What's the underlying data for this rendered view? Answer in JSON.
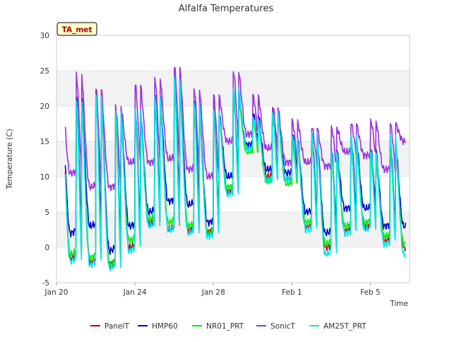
{
  "chart_data": {
    "type": "line",
    "title": "Alfalfa Temperatures",
    "xlabel": "Time",
    "ylabel": "Temperature (C)",
    "annotation": "TA_met",
    "ylim": [
      -5,
      30
    ],
    "xlim": [
      0,
      18
    ],
    "x_ticks": [
      {
        "x": 0,
        "label": "Jan 20"
      },
      {
        "x": 4,
        "label": "Jan 24"
      },
      {
        "x": 8,
        "label": "Jan 28"
      },
      {
        "x": 12,
        "label": "Feb 1"
      },
      {
        "x": 16,
        "label": "Feb 5"
      }
    ],
    "y_ticks": [
      -5,
      0,
      5,
      10,
      15,
      20,
      25,
      30
    ],
    "grid": "horizontal bands",
    "legend_position": "bottom",
    "series": [
      {
        "name": "PanelT",
        "color": "#cc0000",
        "peaks": [
          21.5,
          21,
          22,
          19.5,
          19,
          21.5,
          23.5,
          20,
          19.5,
          21.5,
          18.5,
          19,
          15.5,
          15.5,
          13.5,
          15,
          13.5,
          14.5
        ],
        "troughs": [
          -0.5,
          -1.5,
          -2,
          -2.5,
          0,
          3.5,
          2.5,
          2.5,
          2,
          8,
          14,
          10,
          9.5,
          3,
          0,
          2.5,
          3,
          1,
          0
        ]
      },
      {
        "name": "HMP60",
        "color": "#0000cc",
        "peaks": [
          21.5,
          21.5,
          21.5,
          19.5,
          19.5,
          21.5,
          23.5,
          20.5,
          19.5,
          21.5,
          19,
          19,
          16,
          16,
          14,
          15.5,
          14,
          15
        ],
        "troughs": [
          4.5,
          2,
          3,
          -0.5,
          3,
          5,
          6.5,
          6,
          3.5,
          10,
          14.5,
          11,
          10.5,
          5,
          2,
          5.5,
          5.5,
          3,
          3
        ]
      },
      {
        "name": "NR01_PRT",
        "color": "#00ee00",
        "peaks": [
          20.5,
          20.5,
          21,
          18.5,
          18.5,
          20.5,
          22.5,
          19.5,
          19,
          21,
          18,
          18.5,
          15,
          15,
          13,
          14.5,
          13,
          14
        ],
        "troughs": [
          2,
          -1,
          -1.5,
          -2.5,
          1,
          4,
          3.5,
          3,
          2,
          8.5,
          13.5,
          9.5,
          9,
          3.5,
          0.5,
          3,
          3.5,
          1.5,
          0.5
        ]
      },
      {
        "name": "SonicT",
        "color": "#9b30d9",
        "peaks": [
          22.5,
          24.5,
          22.5,
          20,
          23,
          24,
          25.5,
          22.5,
          21.5,
          25,
          21.5,
          20,
          18,
          17,
          17,
          17.5,
          18,
          17.5
        ],
        "troughs": [
          12,
          10.5,
          8.5,
          8.5,
          12,
          12,
          12.5,
          11,
          10,
          15,
          16,
          14,
          12,
          12,
          11.5,
          13.5,
          13,
          11,
          15
        ]
      },
      {
        "name": "AM25T_PRT",
        "color": "#00e5ee",
        "peaks": [
          21.5,
          21,
          21.5,
          19.5,
          19.5,
          21.5,
          24,
          20.5,
          19.5,
          22.5,
          18.5,
          19,
          16,
          16,
          14,
          15.5,
          14,
          15.5
        ],
        "troughs": [
          -0.5,
          -2,
          -2.5,
          -3,
          -0.5,
          3,
          2.5,
          2,
          1.5,
          7.5,
          14,
          9.5,
          9.5,
          2.5,
          -1,
          2,
          2.5,
          0.5,
          -1
        ]
      }
    ]
  }
}
